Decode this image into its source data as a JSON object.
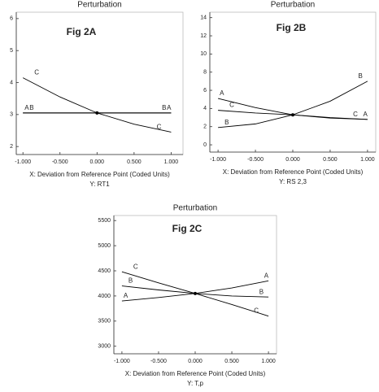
{
  "chart_data": [
    {
      "type": "line",
      "title": "Perturbation",
      "annotation": "Fig 2A",
      "x_label": "X: Deviation from Reference Point (Coded Units)",
      "y_label": "Y: RT1",
      "x": [
        -1,
        -0.5,
        0,
        0.5,
        1
      ],
      "series": [
        {
          "name": "A",
          "color": "#000000",
          "values": [
            3.05,
            3.05,
            3.05,
            3.05,
            3.05
          ]
        },
        {
          "name": "B",
          "color": "#000000",
          "values": [
            3.05,
            3.05,
            3.05,
            3.05,
            3.05
          ]
        },
        {
          "name": "C",
          "color": "#000000",
          "values": [
            4.15,
            3.55,
            3.05,
            2.7,
            2.45
          ]
        }
      ],
      "xlim": [
        -1.09,
        1.16
      ],
      "ylim": [
        1.75,
        6.2
      ],
      "xticks": [
        {
          "value": -1,
          "label": "-1.000"
        },
        {
          "value": -0.5,
          "label": "-0.500"
        },
        {
          "value": 0,
          "label": "0.000"
        },
        {
          "value": 0.5,
          "label": "0.500"
        },
        {
          "value": 1,
          "label": "1.000"
        }
      ],
      "yticks": [
        2,
        3,
        4,
        5,
        6
      ]
    },
    {
      "type": "line",
      "title": "Perturbation",
      "annotation": "Fig 2B",
      "x_label": "X: Deviation from Reference Point (Coded Units)",
      "y_label": "Y: RS 2,3",
      "x": [
        -1,
        -0.5,
        0,
        0.5,
        1
      ],
      "series": [
        {
          "name": "A",
          "color": "#000000",
          "values": [
            5.1,
            4.1,
            3.3,
            2.95,
            2.8
          ]
        },
        {
          "name": "B",
          "color": "#000000",
          "values": [
            1.9,
            2.3,
            3.3,
            4.8,
            7.0
          ]
        },
        {
          "name": "C",
          "color": "#000000",
          "values": [
            3.8,
            3.5,
            3.3,
            3.0,
            2.8
          ]
        }
      ],
      "xlim": [
        -1.11,
        1.11
      ],
      "ylim": [
        -0.8,
        14.6
      ],
      "xticks": [
        {
          "value": -1,
          "label": "-1.000"
        },
        {
          "value": -0.5,
          "label": "-0.500"
        },
        {
          "value": 0,
          "label": "0.000"
        },
        {
          "value": 0.5,
          "label": "0.500"
        },
        {
          "value": 1,
          "label": "1.000"
        }
      ],
      "yticks": [
        0,
        2,
        4,
        6,
        8,
        10,
        12,
        14
      ]
    },
    {
      "type": "line",
      "title": "Perturbation",
      "annotation": "Fig 2C",
      "x_label": "X: Deviation from Reference Point (Coded Units)",
      "y_label": "Y: T,p",
      "x": [
        -1,
        -0.5,
        0,
        0.5,
        1
      ],
      "series": [
        {
          "name": "A",
          "color": "#000000",
          "values": [
            3900,
            3970,
            4050,
            4160,
            4300
          ]
        },
        {
          "name": "B",
          "color": "#000000",
          "values": [
            4200,
            4120,
            4050,
            4000,
            3980
          ]
        },
        {
          "name": "C",
          "color": "#000000",
          "values": [
            4480,
            4260,
            4050,
            3830,
            3600
          ]
        }
      ],
      "xlim": [
        -1.11,
        1.11
      ],
      "ylim": [
        2850,
        5600
      ],
      "xticks": [
        {
          "value": -1,
          "label": "-1.000"
        },
        {
          "value": -0.5,
          "label": "-0.500"
        },
        {
          "value": 0,
          "label": "0.000"
        },
        {
          "value": 0.5,
          "label": "0.500"
        },
        {
          "value": 1,
          "label": "1.000"
        }
      ],
      "yticks": [
        3000,
        3500,
        4000,
        4500,
        5000,
        5500
      ]
    }
  ]
}
